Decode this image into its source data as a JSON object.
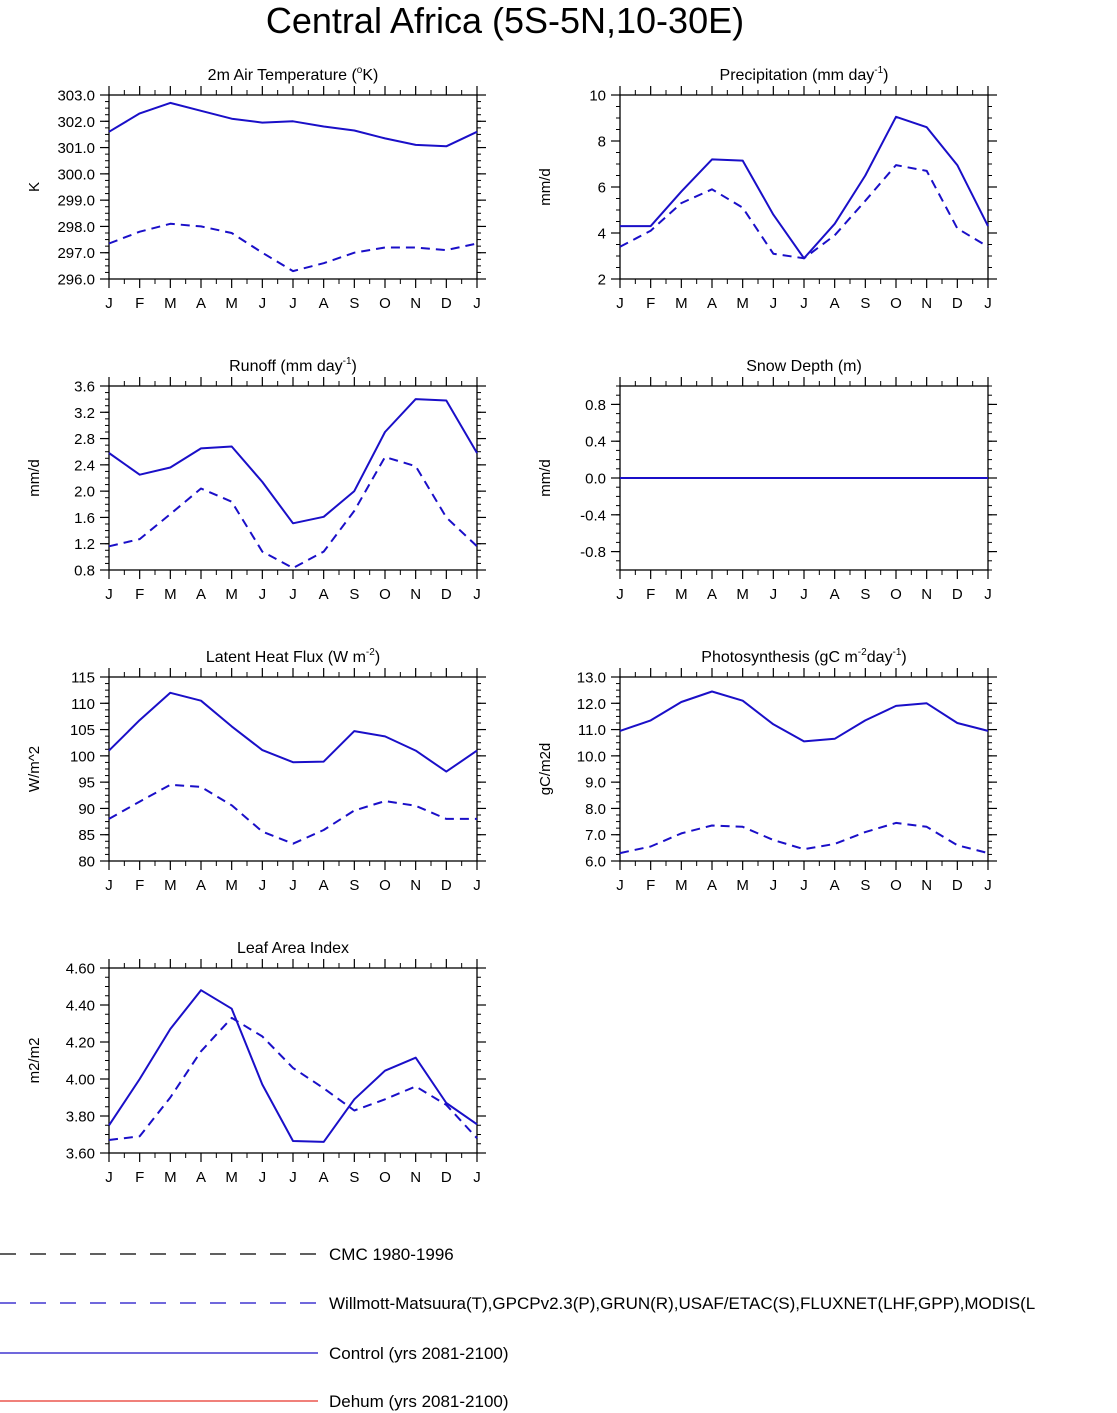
{
  "title": "Central Africa (5S-5N,10-30E)",
  "months": [
    "J",
    "F",
    "M",
    "A",
    "M",
    "J",
    "J",
    "A",
    "S",
    "O",
    "N",
    "D",
    "J"
  ],
  "colors": {
    "control": "#1a0fc8",
    "obs": "#1a0fc8",
    "cmc": "#000000",
    "dehum": "#e8352a"
  },
  "legend": [
    {
      "label": "CMC 1980-1996",
      "style": "dashed",
      "color": "#000000"
    },
    {
      "label": "Willmott-Matsuura(T),GPCPv2.3(P),GRUN(R),USAF/ETAC(S),FLUXNET(LHF,GPP),MODIS(L",
      "style": "dashed",
      "color": "#1a0fc8"
    },
    {
      "label": "Control (yrs 2081-2100)",
      "style": "solid",
      "color": "#1a0fc8"
    },
    {
      "label": "Dehum (yrs 2081-2100)",
      "style": "solid",
      "color": "#e8352a"
    }
  ],
  "chart_data": [
    {
      "type": "line",
      "title": "2m Air Temperature (",
      "title_sup": "o",
      "title_rest": "K)",
      "ylabel": "K",
      "ylim": [
        296.0,
        303.0
      ],
      "yticks": [
        "296.0",
        "297.0",
        "298.0",
        "299.0",
        "300.0",
        "301.0",
        "302.0",
        "303.0"
      ],
      "series": [
        {
          "role": "control",
          "style": "solid",
          "values": [
            301.6,
            302.3,
            302.7,
            302.4,
            302.1,
            301.95,
            302.0,
            301.8,
            301.65,
            301.35,
            301.1,
            301.05,
            301.6
          ]
        },
        {
          "role": "obs",
          "style": "dashed",
          "values": [
            297.35,
            297.8,
            298.1,
            298.0,
            297.75,
            297.0,
            296.3,
            296.6,
            297.0,
            297.2,
            297.2,
            297.1,
            297.35
          ]
        }
      ]
    },
    {
      "type": "line",
      "title": "Precipitation (mm day",
      "title_sup": "-1",
      "title_rest": ")",
      "ylabel": "mm/d",
      "ylim": [
        2,
        10
      ],
      "yticks": [
        "2",
        "4",
        "6",
        "8",
        "10"
      ],
      "series": [
        {
          "role": "control",
          "style": "solid",
          "values": [
            4.3,
            4.3,
            5.8,
            7.2,
            7.15,
            4.8,
            2.9,
            4.4,
            6.5,
            9.05,
            8.6,
            6.95,
            4.3
          ]
        },
        {
          "role": "obs",
          "style": "dashed",
          "values": [
            3.4,
            4.1,
            5.3,
            5.9,
            5.1,
            3.1,
            2.9,
            3.9,
            5.4,
            6.95,
            6.7,
            4.2,
            3.4
          ]
        }
      ]
    },
    {
      "type": "line",
      "title": "Runoff (mm day",
      "title_sup": "-1",
      "title_rest": ")",
      "ylabel": "mm/d",
      "ylim": [
        0.8,
        3.6
      ],
      "yticks": [
        "0.8",
        "1.2",
        "1.6",
        "2.0",
        "2.4",
        "2.8",
        "3.2",
        "3.6"
      ],
      "series": [
        {
          "role": "control",
          "style": "solid",
          "values": [
            2.58,
            2.25,
            2.36,
            2.65,
            2.68,
            2.14,
            1.51,
            1.61,
            2.0,
            2.9,
            3.4,
            3.38,
            2.58
          ]
        },
        {
          "role": "obs",
          "style": "dashed",
          "values": [
            1.16,
            1.27,
            1.65,
            2.04,
            1.84,
            1.08,
            0.83,
            1.08,
            1.7,
            2.52,
            2.38,
            1.6,
            1.16
          ]
        }
      ]
    },
    {
      "type": "line",
      "title": "Snow Depth (m)",
      "title_sup": "",
      "title_rest": "",
      "ylabel": "mm/d",
      "ylim": [
        -1.0,
        1.0
      ],
      "yticks": [
        "-0.8",
        "-0.4",
        "0.0",
        "0.4",
        "0.8"
      ],
      "series": [
        {
          "role": "control",
          "style": "solid",
          "values": [
            0,
            0,
            0,
            0,
            0,
            0,
            0,
            0,
            0,
            0,
            0,
            0,
            0
          ]
        },
        {
          "role": "obs",
          "style": "dashed",
          "values": [
            0,
            0,
            0,
            0,
            0,
            0,
            0,
            0,
            0,
            0,
            0,
            0,
            0
          ]
        }
      ]
    },
    {
      "type": "line",
      "title": "Latent Heat Flux (W m",
      "title_sup": "-2",
      "title_rest": ")",
      "ylabel": "W/m^2",
      "ylim": [
        80,
        115
      ],
      "yticks": [
        "80",
        "85",
        "90",
        "95",
        "100",
        "105",
        "110",
        "115"
      ],
      "series": [
        {
          "role": "control",
          "style": "solid",
          "values": [
            101.0,
            106.8,
            112.0,
            110.5,
            105.6,
            101.1,
            98.8,
            98.9,
            104.7,
            103.7,
            101.0,
            97.0,
            101.0
          ]
        },
        {
          "role": "obs",
          "style": "dashed",
          "values": [
            88.0,
            91.3,
            94.5,
            94.1,
            90.6,
            85.6,
            83.3,
            85.9,
            89.6,
            91.4,
            90.5,
            88.0,
            88.0
          ]
        }
      ]
    },
    {
      "type": "line",
      "title": "Photosynthesis (gC m",
      "title_sup": "-2",
      "title_rest": "day",
      "title_sup2": "-1",
      "title_rest2": ")",
      "ylabel": "gC/m2d",
      "ylim": [
        6.0,
        13.0
      ],
      "yticks": [
        "6.0",
        "7.0",
        "8.0",
        "9.0",
        "10.0",
        "11.0",
        "12.0",
        "13.0"
      ],
      "series": [
        {
          "role": "control",
          "style": "solid",
          "values": [
            10.95,
            11.35,
            12.05,
            12.45,
            12.1,
            11.2,
            10.55,
            10.65,
            11.35,
            11.9,
            12.0,
            11.25,
            10.95
          ]
        },
        {
          "role": "obs",
          "style": "dashed",
          "values": [
            6.3,
            6.55,
            7.05,
            7.35,
            7.3,
            6.8,
            6.45,
            6.65,
            7.1,
            7.45,
            7.3,
            6.6,
            6.3
          ]
        }
      ]
    },
    {
      "type": "line",
      "title": "Leaf Area Index",
      "title_sup": "",
      "title_rest": "",
      "ylabel": "m2/m2",
      "ylim": [
        3.6,
        4.6
      ],
      "yticks": [
        "3.60",
        "3.80",
        "4.00",
        "4.20",
        "4.40",
        "4.60"
      ],
      "series": [
        {
          "role": "control",
          "style": "solid",
          "values": [
            3.75,
            4.0,
            4.27,
            4.48,
            4.38,
            3.97,
            3.665,
            3.66,
            3.89,
            4.045,
            4.115,
            3.87,
            3.755
          ]
        },
        {
          "role": "obs",
          "style": "dashed",
          "values": [
            3.67,
            3.69,
            3.9,
            4.15,
            4.33,
            4.23,
            4.06,
            3.95,
            3.83,
            3.89,
            3.96,
            3.86,
            3.68
          ]
        }
      ]
    }
  ]
}
